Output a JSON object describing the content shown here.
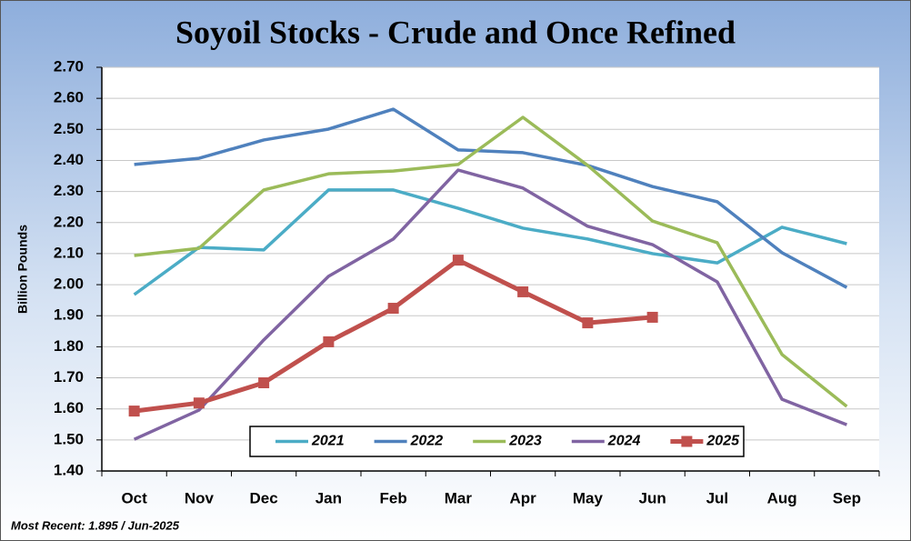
{
  "chart_data": {
    "type": "line",
    "title": "Soyoil Stocks - Crude and Once Refined",
    "ylabel": "Billion Pounds",
    "footnote": "Most Recent: 1.895 / Jun-2025",
    "categories": [
      "Oct",
      "Nov",
      "Dec",
      "Jan",
      "Feb",
      "Mar",
      "Apr",
      "May",
      "Jun",
      "Jul",
      "Aug",
      "Sep"
    ],
    "series": [
      {
        "name": "2021",
        "color": "#4bacc6",
        "values": [
          1.968,
          2.12,
          2.112,
          2.305,
          2.305,
          2.246,
          2.182,
          2.147,
          2.1,
          2.07,
          2.185,
          2.132
        ]
      },
      {
        "name": "2022",
        "color": "#4f81bd",
        "values": [
          2.387,
          2.407,
          2.466,
          2.501,
          2.565,
          2.434,
          2.425,
          2.384,
          2.316,
          2.267,
          2.103,
          1.991
        ]
      },
      {
        "name": "2023",
        "color": "#9bbb59",
        "values": [
          2.094,
          2.117,
          2.305,
          2.357,
          2.366,
          2.387,
          2.539,
          2.384,
          2.205,
          2.135,
          1.775,
          1.608
        ]
      },
      {
        "name": "2024",
        "color": "#8064a2",
        "values": [
          1.502,
          1.596,
          1.822,
          2.027,
          2.147,
          2.369,
          2.311,
          2.188,
          2.129,
          2.009,
          1.631,
          1.549
        ]
      },
      {
        "name": "2025",
        "color": "#c0504d",
        "marker": "square",
        "values": [
          1.593,
          1.619,
          1.684,
          1.816,
          1.924,
          2.079,
          1.977,
          1.877,
          1.895,
          null,
          null,
          null
        ]
      }
    ],
    "ylim": [
      1.4,
      2.7
    ],
    "yticks": [
      {
        "value": 1.4,
        "label": "1.40"
      },
      {
        "value": 1.5,
        "label": "1.50"
      },
      {
        "value": 1.6,
        "label": "1.60"
      },
      {
        "value": 1.7,
        "label": "1.70"
      },
      {
        "value": 1.8,
        "label": "1.80"
      },
      {
        "value": 1.9,
        "label": "1.90"
      },
      {
        "value": 2.0,
        "label": "2.00"
      },
      {
        "value": 2.1,
        "label": "2.10"
      },
      {
        "value": 2.2,
        "label": "2.20"
      },
      {
        "value": 2.3,
        "label": "2.30"
      },
      {
        "value": 2.4,
        "label": "2.40"
      },
      {
        "value": 2.5,
        "label": "2.50"
      },
      {
        "value": 2.6,
        "label": "2.60"
      },
      {
        "value": 2.7,
        "label": "2.70"
      }
    ],
    "grid": true,
    "legend": "bottom"
  }
}
